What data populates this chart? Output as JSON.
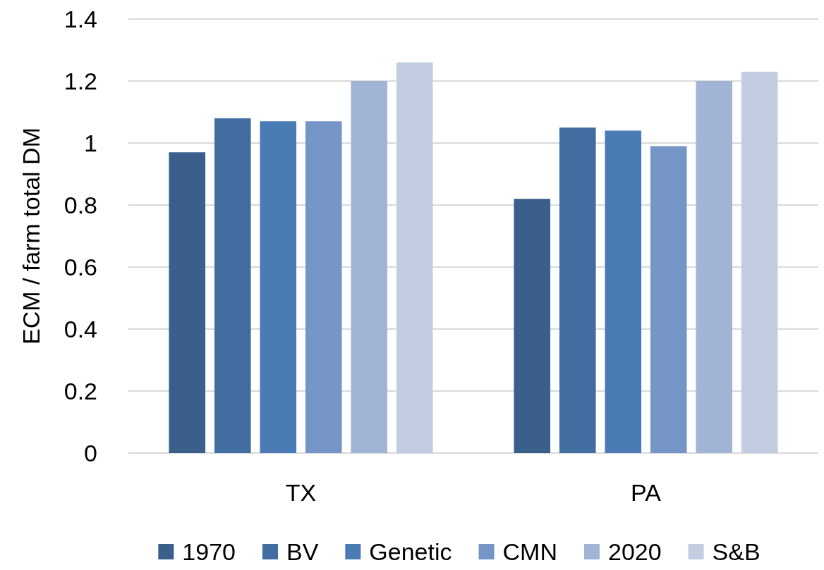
{
  "chart_data": {
    "type": "bar",
    "ylabel": "ECM / farm total DM",
    "categories": [
      "TX",
      "PA"
    ],
    "series": [
      {
        "name": "1970",
        "color": "#3a5f8a",
        "values": [
          0.97,
          0.82
        ]
      },
      {
        "name": "BV",
        "color": "#426da0",
        "values": [
          1.08,
          1.05
        ]
      },
      {
        "name": "Genetic",
        "color": "#4a7bb4",
        "values": [
          1.07,
          1.04
        ]
      },
      {
        "name": "CMN",
        "color": "#7495c5",
        "values": [
          1.07,
          0.99
        ]
      },
      {
        "name": "2020",
        "color": "#a2b4d5",
        "values": [
          1.2,
          1.2
        ]
      },
      {
        "name": "S&B",
        "color": "#c2cde2",
        "values": [
          1.26,
          1.23
        ]
      }
    ],
    "ylim": [
      0,
      1.4
    ],
    "yticks": [
      0,
      0.2,
      0.4,
      0.6,
      0.8,
      1,
      1.2,
      1.4
    ],
    "grid": "y",
    "legend": "bottom"
  }
}
